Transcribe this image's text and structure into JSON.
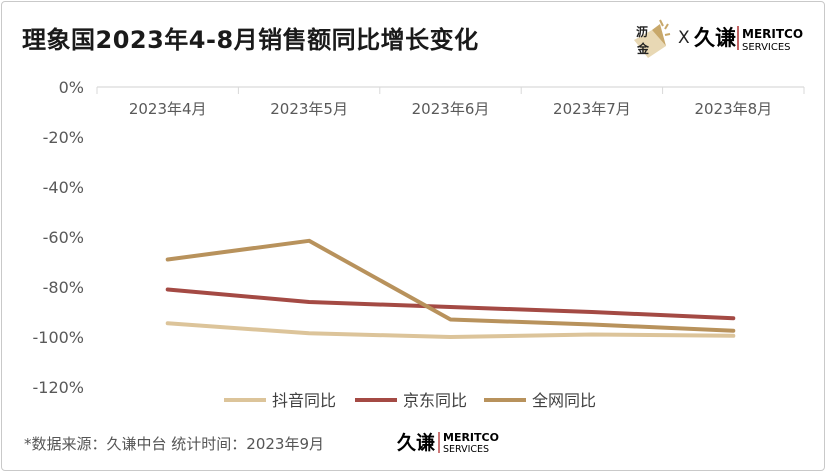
{
  "title": "理象国2023年4-8月销售额同比增长变化",
  "logo_top": {
    "badge_top": "沥",
    "badge_bottom": "金",
    "x": "X",
    "jiuqian": "久谦",
    "name": "MERITCO",
    "sub": "SERVICES"
  },
  "footer": {
    "source": "*数据来源：久谦中台  统计时间：2023年9月",
    "jiuqian": "久谦",
    "name": "MERITCO",
    "sub": "SERVICES"
  },
  "colors": {
    "douyin": "#dcc49a",
    "jd": "#a44a44",
    "all": "#b8925c",
    "grid": "#d9d9d9",
    "axis_text": "#595959"
  },
  "chart_data": {
    "type": "line",
    "title": "理象国2023年4-8月销售额同比增长变化",
    "categories": [
      "2023年4月",
      "2023年5月",
      "2023年6月",
      "2023年7月",
      "2023年8月"
    ],
    "x_axis_position": "top",
    "ylim": [
      -120,
      0
    ],
    "yticks": [
      0,
      -20,
      -40,
      -60,
      -80,
      -100,
      -120
    ],
    "ytick_labels": [
      "0%",
      "-20%",
      "-40%",
      "-60%",
      "-80%",
      "-100%",
      "-120%"
    ],
    "grid": false,
    "legend_position": "bottom",
    "series": [
      {
        "name": "抖音同比",
        "color_key": "douyin",
        "values": [
          -94.5,
          -98.5,
          -100,
          -99,
          -99.5
        ]
      },
      {
        "name": "京东同比",
        "color_key": "jd",
        "values": [
          -81,
          -86,
          -88,
          -90,
          -92.5
        ]
      },
      {
        "name": "全网同比",
        "color_key": "all",
        "values": [
          -69,
          -61.5,
          -93,
          -95,
          -97.5
        ]
      }
    ]
  }
}
